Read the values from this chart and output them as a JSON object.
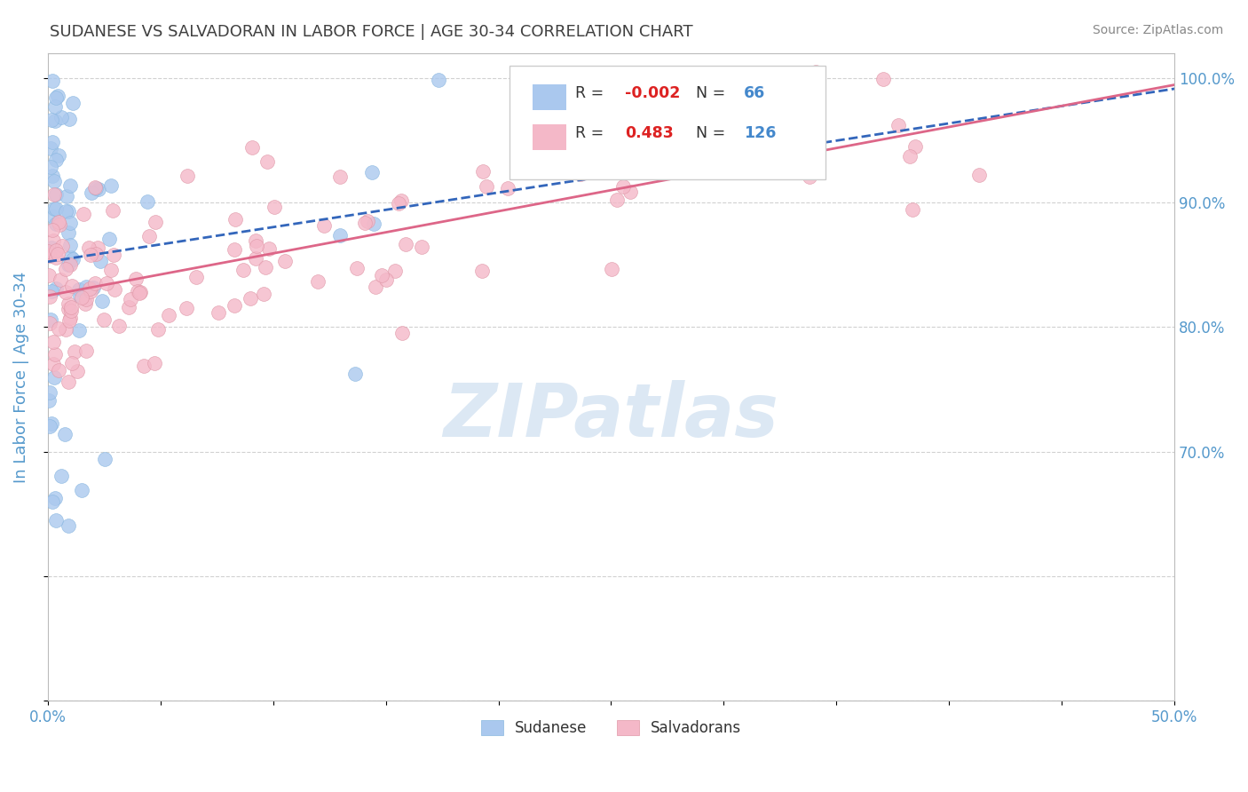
{
  "title": "SUDANESE VS SALVADORAN IN LABOR FORCE | AGE 30-34 CORRELATION CHART",
  "source_text": "Source: ZipAtlas.com",
  "ylabel": "In Labor Force | Age 30-34",
  "xlim": [
    0.0,
    0.5
  ],
  "ylim": [
    0.5,
    1.02
  ],
  "blue_R": -0.002,
  "blue_N": 66,
  "pink_R": 0.483,
  "pink_N": 126,
  "blue_color": "#aac8ee",
  "pink_color": "#f4b8c8",
  "blue_line_color": "#3366bb",
  "pink_line_color": "#dd6688",
  "watermark_color": "#dce8f4",
  "background_color": "#ffffff",
  "title_color": "#404040",
  "axis_label_color": "#5599cc",
  "tick_label_color": "#5599cc",
  "grid_color": "#cccccc",
  "legend_R_color": "#dd2222",
  "legend_N_color": "#4488cc"
}
